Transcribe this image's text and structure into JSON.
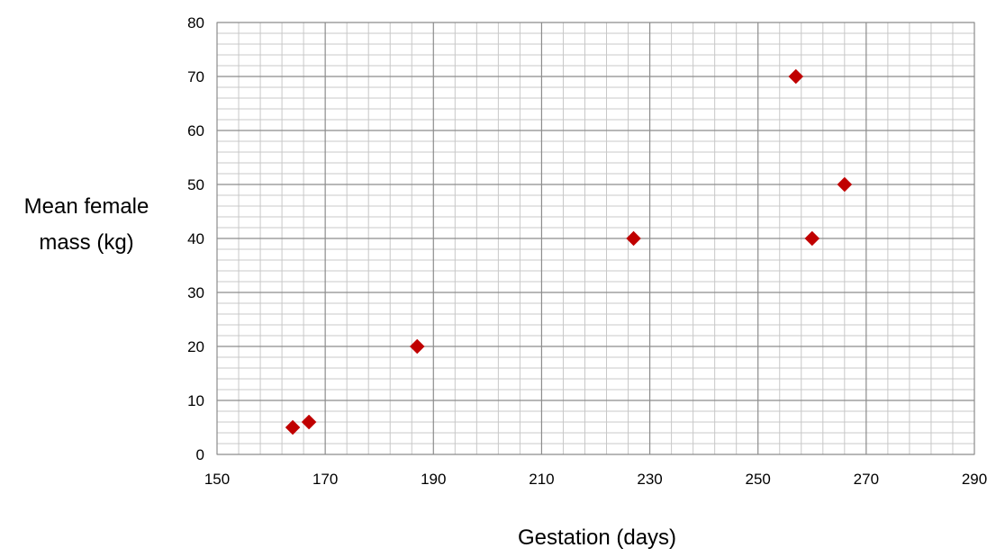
{
  "chart_data": {
    "type": "scatter",
    "xlabel": "Gestation (days)",
    "ylabel_lines": [
      "Mean female",
      "mass (kg)"
    ],
    "xlim": [
      150,
      290
    ],
    "ylim": [
      0,
      80
    ],
    "x_ticks": [
      150,
      170,
      190,
      210,
      230,
      250,
      270,
      290
    ],
    "y_ticks": [
      0,
      10,
      20,
      30,
      40,
      50,
      60,
      70,
      80
    ],
    "grid": "major and minor",
    "legend": "none",
    "marker": "diamond",
    "marker_color": "#c00000",
    "series": [
      {
        "points": [
          {
            "x": 164,
            "y": 5
          },
          {
            "x": 167,
            "y": 6
          },
          {
            "x": 187,
            "y": 20
          },
          {
            "x": 227,
            "y": 40
          },
          {
            "x": 257,
            "y": 70
          },
          {
            "x": 260,
            "y": 40
          },
          {
            "x": 266,
            "y": 50
          }
        ]
      }
    ]
  }
}
